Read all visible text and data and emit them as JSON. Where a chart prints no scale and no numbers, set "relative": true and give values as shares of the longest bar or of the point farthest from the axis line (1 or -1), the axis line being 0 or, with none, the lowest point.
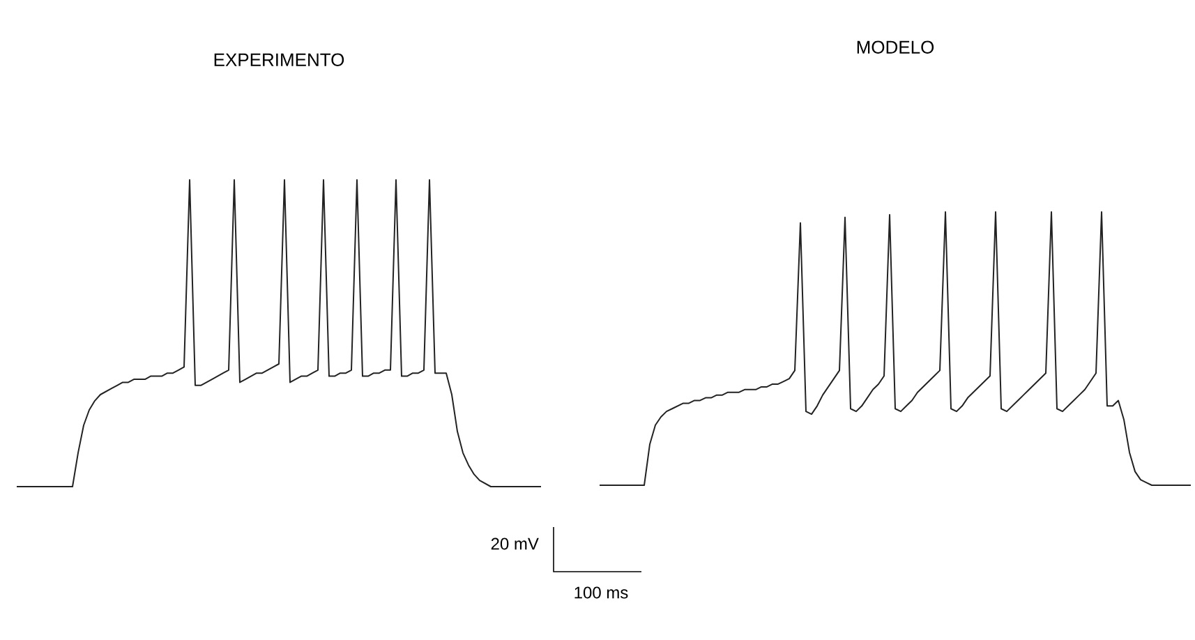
{
  "chart_data": [
    {
      "type": "line",
      "title": "EXPERIMENTO",
      "relative": true,
      "annotations": [
        "20 mV",
        "100 ms"
      ],
      "categories": [
        null,
        null,
        null,
        null,
        null,
        null,
        null,
        null,
        null,
        null,
        null,
        null,
        null,
        null,
        null,
        null,
        null,
        null,
        null,
        null,
        null,
        null,
        null,
        null,
        null,
        null,
        null,
        null,
        null,
        null,
        null,
        null,
        null,
        null,
        null,
        null,
        null,
        null,
        null,
        null,
        null,
        null,
        null,
        null,
        null,
        null,
        null,
        null,
        null,
        null,
        null,
        null,
        null,
        null,
        null,
        null,
        null,
        null,
        null,
        null,
        null,
        null,
        null,
        null,
        null,
        null,
        null,
        null,
        null,
        null,
        null,
        null,
        null,
        null,
        null,
        null,
        null,
        null,
        null,
        null,
        null,
        null,
        null,
        null,
        null,
        null,
        null,
        null,
        null,
        null,
        null,
        null,
        null,
        null,
        null
      ],
      "series": [
        {
          "color": "#222222",
          "values": [
            0,
            0,
            0,
            0,
            0,
            0,
            0,
            0,
            0,
            0,
            0,
            0.11,
            0.2,
            0.25,
            0.28,
            0.3,
            0.31,
            0.32,
            0.33,
            0.34,
            0.34,
            0.35,
            0.35,
            0.35,
            0.36,
            0.36,
            0.36,
            0.37,
            0.37,
            0.38,
            0.39,
            1,
            0.33,
            0.33,
            0.34,
            0.35,
            0.36,
            0.37,
            0.38,
            1,
            0.34,
            0.35,
            0.36,
            0.37,
            0.37,
            0.38,
            0.39,
            0.4,
            1,
            0.34,
            0.35,
            0.36,
            0.36,
            0.37,
            0.38,
            1,
            0.36,
            0.36,
            0.37,
            0.37,
            0.38,
            1,
            0.36,
            0.36,
            0.37,
            0.37,
            0.38,
            0.38,
            1,
            0.36,
            0.36,
            0.37,
            0.37,
            0.38,
            1,
            0.37,
            0.37,
            0.37,
            0.3,
            0.18,
            0.11,
            0.07,
            0.04,
            0.02,
            0.01,
            0,
            0,
            0,
            0,
            0,
            0,
            0,
            0,
            0,
            0
          ]
        }
      ]
    },
    {
      "type": "line",
      "title": "MODELO",
      "relative": true,
      "categories": [
        null,
        null,
        null,
        null,
        null,
        null,
        null,
        null,
        null,
        null,
        null,
        null,
        null,
        null,
        null,
        null,
        null,
        null,
        null,
        null,
        null,
        null,
        null,
        null,
        null,
        null,
        null,
        null,
        null,
        null,
        null,
        null,
        null,
        null,
        null,
        null,
        null,
        null,
        null,
        null,
        null,
        null,
        null,
        null,
        null,
        null,
        null,
        null,
        null,
        null,
        null,
        null,
        null,
        null,
        null,
        null,
        null,
        null,
        null,
        null,
        null,
        null,
        null,
        null,
        null,
        null,
        null,
        null,
        null,
        null,
        null,
        null,
        null,
        null,
        null,
        null,
        null,
        null,
        null,
        null,
        null,
        null,
        null,
        null,
        null,
        null,
        null,
        null,
        null,
        null,
        null,
        null,
        null,
        null,
        null,
        null,
        null,
        null,
        null,
        null,
        null,
        null,
        null,
        null,
        null,
        null,
        null
      ],
      "series": [
        {
          "color": "#222222",
          "values": [
            0,
            0,
            0,
            0,
            0,
            0,
            0,
            0,
            0,
            0.15,
            0.22,
            0.25,
            0.27,
            0.28,
            0.29,
            0.3,
            0.3,
            0.31,
            0.31,
            0.32,
            0.32,
            0.33,
            0.33,
            0.34,
            0.34,
            0.34,
            0.35,
            0.35,
            0.35,
            0.36,
            0.36,
            0.37,
            0.37,
            0.38,
            0.39,
            0.42,
            0.96,
            0.27,
            0.26,
            0.29,
            0.33,
            0.36,
            0.39,
            0.42,
            0.98,
            0.28,
            0.27,
            0.29,
            0.32,
            0.35,
            0.37,
            0.4,
            0.99,
            0.28,
            0.27,
            0.29,
            0.31,
            0.34,
            0.36,
            0.38,
            0.4,
            0.42,
            1,
            0.28,
            0.27,
            0.29,
            0.32,
            0.34,
            0.36,
            0.38,
            0.4,
            1,
            0.28,
            0.27,
            0.29,
            0.31,
            0.33,
            0.35,
            0.37,
            0.39,
            0.41,
            1,
            0.28,
            0.27,
            0.29,
            0.31,
            0.33,
            0.35,
            0.38,
            0.41,
            1,
            0.29,
            0.29,
            0.31,
            0.24,
            0.12,
            0.05,
            0.02,
            0.01,
            0,
            0,
            0,
            0,
            0,
            0,
            0,
            0
          ]
        }
      ]
    }
  ]
}
